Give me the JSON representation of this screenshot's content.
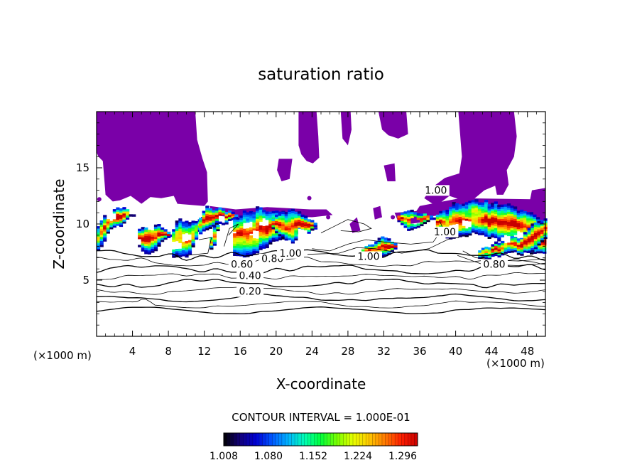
{
  "chart_data": {
    "type": "heatmap",
    "title": "saturation ratio",
    "xlabel": "X-coordinate",
    "ylabel": "Z-coordinate",
    "x_unit": "(×1000 m)",
    "z_unit": "(×1000 m)",
    "xlim": [
      0,
      50
    ],
    "ylim": [
      0,
      20
    ],
    "x_ticks": [
      4,
      8,
      12,
      16,
      20,
      24,
      28,
      32,
      36,
      40,
      44,
      48
    ],
    "y_ticks": [
      5,
      10,
      15
    ],
    "contour_interval_text": "CONTOUR INTERVAL = 1.000E-01",
    "contour_levels": [
      0.2,
      0.3,
      0.4,
      0.5,
      0.6,
      0.7,
      0.8,
      0.9,
      1.0
    ],
    "contour_labels": [
      {
        "text": "0.20",
        "x": 17.1,
        "z": 3.7
      },
      {
        "text": "0.40",
        "x": 17.1,
        "z": 5.1
      },
      {
        "text": "0.60",
        "x": 16.2,
        "z": 6.1
      },
      {
        "text": "0.80",
        "x": 19.6,
        "z": 6.6
      },
      {
        "text": "0.80",
        "x": 44.3,
        "z": 6.1
      },
      {
        "text": "1.00",
        "x": 21.6,
        "z": 7.1
      },
      {
        "text": "1.00",
        "x": 30.3,
        "z": 6.8
      },
      {
        "text": "1.00",
        "x": 37.8,
        "z": 12.7
      },
      {
        "text": "1.00",
        "x": 38.8,
        "z": 9.0
      }
    ],
    "colorbar": {
      "min": 1.008,
      "max": 1.32,
      "tick_labels": [
        "1.008",
        "1.080",
        "1.152",
        "1.224",
        "1.296"
      ],
      "colors": [
        "#000000",
        "#12007a",
        "#0000d6",
        "#0058ff",
        "#00b4ff",
        "#00ffb4",
        "#00ff3c",
        "#78ff00",
        "#e6ff00",
        "#ffc800",
        "#ff7800",
        "#ff1e00",
        "#c80000"
      ]
    },
    "fill_below_threshold_color": "#7a00a8"
  }
}
